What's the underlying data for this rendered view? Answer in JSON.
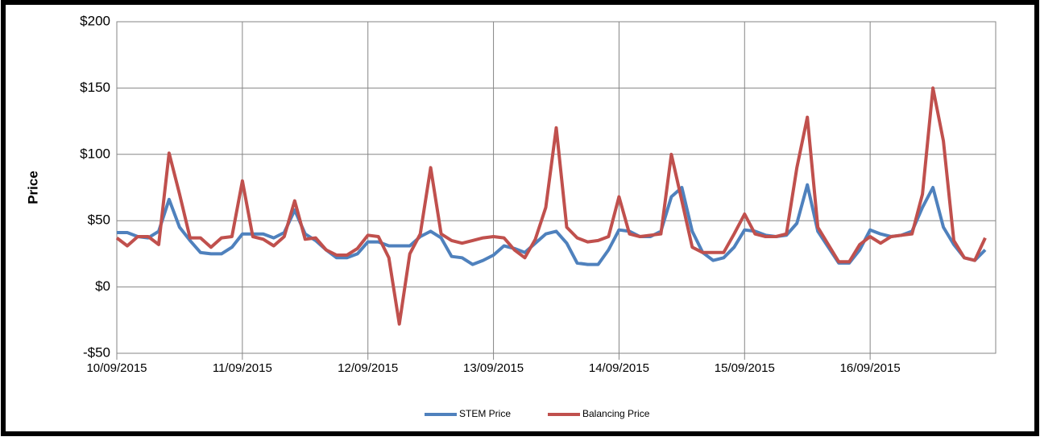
{
  "chart_data": {
    "type": "line",
    "y_label": "Price",
    "categories": [
      "10/09/2015",
      null,
      null,
      null,
      null,
      null,
      null,
      null,
      null,
      null,
      null,
      null,
      "11/09/2015",
      null,
      null,
      null,
      null,
      null,
      null,
      null,
      null,
      null,
      null,
      null,
      "12/09/2015",
      null,
      null,
      null,
      null,
      null,
      null,
      null,
      null,
      null,
      null,
      null,
      "13/09/2015",
      null,
      null,
      null,
      null,
      null,
      null,
      null,
      null,
      null,
      null,
      null,
      "14/09/2015",
      null,
      null,
      null,
      null,
      null,
      null,
      null,
      null,
      null,
      null,
      null,
      "15/09/2015",
      null,
      null,
      null,
      null,
      null,
      null,
      null,
      null,
      null,
      null,
      null,
      "16/09/2015",
      null,
      null,
      null,
      null,
      null,
      null,
      null,
      null,
      null,
      null,
      null
    ],
    "series": [
      {
        "name": "STEM Price",
        "color": "#4f81bd",
        "values": [
          41,
          41,
          38,
          37,
          42,
          66,
          45,
          35,
          26,
          25,
          25,
          30,
          40,
          40,
          40,
          37,
          41,
          58,
          40,
          35,
          28,
          22,
          22,
          25,
          34,
          34,
          31,
          31,
          31,
          38,
          42,
          37,
          23,
          22,
          17,
          20,
          24,
          31,
          29,
          26,
          33,
          40,
          42,
          33,
          18,
          17,
          17,
          28,
          43,
          42,
          38,
          38,
          42,
          68,
          75,
          42,
          26,
          20,
          22,
          30,
          43,
          42,
          39,
          38,
          39,
          48,
          77,
          42,
          30,
          18,
          18,
          28,
          43,
          40,
          38,
          39,
          42,
          60,
          75,
          45,
          32,
          22,
          20,
          28
        ]
      },
      {
        "name": "Balancing Price",
        "color": "#c0504d",
        "values": [
          37,
          31,
          38,
          38,
          32,
          101,
          70,
          37,
          37,
          30,
          37,
          38,
          80,
          38,
          36,
          31,
          38,
          65,
          36,
          37,
          28,
          24,
          24,
          29,
          39,
          38,
          22,
          -28,
          25,
          40,
          90,
          40,
          35,
          33,
          35,
          37,
          38,
          37,
          28,
          22,
          36,
          60,
          120,
          45,
          37,
          34,
          35,
          38,
          68,
          40,
          38,
          39,
          40,
          100,
          65,
          30,
          26,
          26,
          26,
          40,
          55,
          40,
          38,
          38,
          40,
          90,
          128,
          45,
          32,
          19,
          19,
          32,
          38,
          33,
          38,
          39,
          40,
          70,
          150,
          110,
          35,
          22,
          20,
          37
        ]
      }
    ],
    "ylim": [
      -50,
      200
    ],
    "yticks": [
      {
        "value": -50,
        "label": "-$50"
      },
      {
        "value": 0,
        "label": "$0"
      },
      {
        "value": 50,
        "label": "$50"
      },
      {
        "value": 100,
        "label": "$100"
      },
      {
        "value": 150,
        "label": "$150"
      },
      {
        "value": 200,
        "label": "$200"
      }
    ],
    "grid": true,
    "legend": "bottom"
  }
}
